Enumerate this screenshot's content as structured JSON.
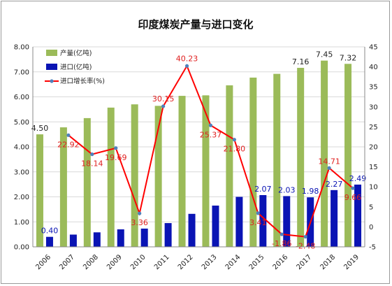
{
  "chart_data": {
    "type": "bar",
    "title": "印度煤炭产量与进口变化",
    "categories": [
      "2006",
      "2007",
      "2008",
      "2009",
      "2010",
      "2011",
      "2012",
      "2013",
      "2014",
      "2015",
      "2016",
      "2017",
      "2018",
      "2019"
    ],
    "series": [
      {
        "name": "产量(亿吨)",
        "type": "bar",
        "axis": "left",
        "color": "#9bbb59",
        "values": [
          4.5,
          4.78,
          5.15,
          5.57,
          5.7,
          5.64,
          6.04,
          6.06,
          6.46,
          6.77,
          6.92,
          7.16,
          7.45,
          7.32
        ]
      },
      {
        "name": "进口(亿吨)",
        "type": "bar",
        "axis": "left",
        "color": "#0a14b4",
        "values": [
          0.4,
          0.49,
          0.58,
          0.7,
          0.73,
          0.95,
          1.32,
          1.65,
          2.0,
          2.07,
          2.03,
          1.98,
          2.27,
          2.49
        ]
      },
      {
        "name": "进口增长率(%)",
        "type": "line",
        "axis": "right",
        "color": "#ff0000",
        "marker_color": "#4f81bd",
        "values": [
          null,
          22.92,
          18.14,
          19.69,
          3.36,
          30.15,
          40.23,
          25.37,
          21.8,
          3.41,
          -1.86,
          -2.48,
          14.71,
          9.66
        ]
      }
    ],
    "data_labels": {
      "production": [
        {
          "category": "2006",
          "text": "4.50"
        },
        {
          "category": "2017",
          "text": "7.16"
        },
        {
          "category": "2018",
          "text": "7.45"
        },
        {
          "category": "2019",
          "text": "7.32"
        }
      ],
      "imports": [
        {
          "category": "2006",
          "text": "0.40"
        },
        {
          "category": "2015",
          "text": "2.07"
        },
        {
          "category": "2016",
          "text": "2.03"
        },
        {
          "category": "2017",
          "text": "1.98"
        },
        {
          "category": "2018",
          "text": "2.27"
        },
        {
          "category": "2019",
          "text": "2.49"
        }
      ],
      "growth": [
        {
          "category": "2007",
          "text": "22.92"
        },
        {
          "category": "2008",
          "text": "18.14"
        },
        {
          "category": "2009",
          "text": "19.69"
        },
        {
          "category": "2010",
          "text": "3.36"
        },
        {
          "category": "2011",
          "text": "30.15"
        },
        {
          "category": "2012",
          "text": "40.23"
        },
        {
          "category": "2013",
          "text": "25.37"
        },
        {
          "category": "2014",
          "text": "21.80"
        },
        {
          "category": "2015",
          "text": "3.41"
        },
        {
          "category": "2016",
          "text": "-1.86"
        },
        {
          "category": "2017",
          "text": "-2.48"
        },
        {
          "category": "2018",
          "text": "14.71"
        },
        {
          "category": "2019",
          "text": "9.66"
        }
      ]
    },
    "y_left": {
      "min": 0,
      "max": 8,
      "ticks": [
        "0.00",
        "1.00",
        "2.00",
        "3.00",
        "4.00",
        "5.00",
        "6.00",
        "7.00",
        "8.00"
      ]
    },
    "y_right": {
      "min": -5,
      "max": 45,
      "ticks": [
        "-5",
        "0",
        "5",
        "10",
        "15",
        "20",
        "25",
        "30",
        "35",
        "40",
        "45"
      ]
    },
    "label_colors": {
      "production": "#222222",
      "imports": "#0a14b4",
      "growth": "#e02020"
    },
    "gridlines": true,
    "legend_position": "top-left"
  }
}
